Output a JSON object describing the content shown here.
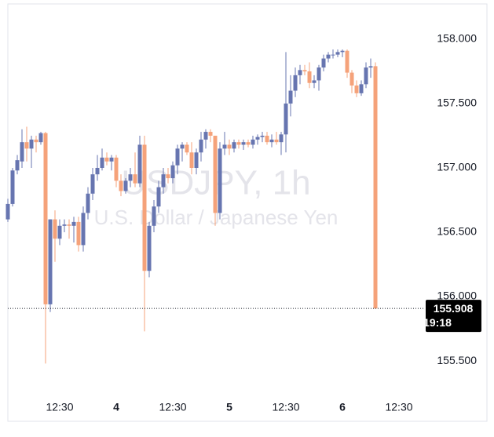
{
  "chart_data": {
    "type": "candlestick",
    "title": "USDJPY, 1h",
    "subtitle": "U.S. Dollar / Japanese Yen",
    "up_color": "#6775b0",
    "down_color": "#f5a27a",
    "open": [
      156.6,
      156.72,
      156.98,
      157.05,
      157.2,
      157.15,
      157.22,
      157.2,
      157.27,
      155.94,
      156.6,
      156.45,
      156.55,
      156.56,
      156.55,
      156.58,
      156.4,
      156.65,
      156.8,
      156.95,
      157.0,
      157.08,
      157.05,
      157.08,
      156.9,
      156.82,
      156.9,
      156.95,
      156.88,
      157.18,
      156.2,
      156.55,
      156.7,
      156.85,
      156.95,
      156.92,
      157.02,
      157.15,
      157.18,
      157.12,
      157.0,
      157.12,
      157.22,
      157.28,
      157.25,
      156.65,
      157.15,
      157.18,
      157.15,
      157.2,
      157.18,
      157.2,
      157.18,
      157.22,
      157.24,
      157.25,
      157.2,
      157.22,
      157.2,
      157.26,
      157.5,
      157.6,
      157.72,
      157.76,
      157.75,
      157.66,
      157.68,
      157.78,
      157.85,
      157.88,
      157.88,
      157.9,
      157.91,
      157.74,
      157.64,
      157.58,
      157.65,
      157.78,
      157.79
    ],
    "high": [
      156.76,
      157.0,
      157.1,
      157.3,
      157.32,
      157.25,
      157.25,
      157.28,
      157.28,
      156.6,
      156.67,
      156.6,
      156.6,
      156.6,
      156.62,
      156.62,
      156.7,
      156.85,
      157.0,
      157.1,
      157.15,
      157.12,
      157.1,
      157.1,
      156.95,
      156.92,
      157.0,
      157.12,
      157.25,
      157.25,
      156.58,
      156.75,
      156.9,
      157.0,
      157.0,
      157.05,
      157.18,
      157.2,
      157.2,
      157.2,
      157.15,
      157.28,
      157.3,
      157.3,
      157.25,
      157.2,
      157.28,
      157.22,
      157.22,
      157.22,
      157.22,
      157.22,
      157.25,
      157.26,
      157.28,
      157.28,
      157.26,
      157.28,
      157.28,
      157.9,
      157.72,
      157.78,
      157.8,
      157.8,
      157.82,
      157.72,
      157.8,
      157.88,
      157.9,
      157.92,
      157.92,
      157.92,
      157.92,
      157.76,
      157.68,
      157.68,
      157.82,
      157.85,
      157.82
    ],
    "low": [
      156.58,
      156.7,
      156.95,
      157.0,
      157.05,
      157.0,
      157.12,
      157.18,
      155.48,
      155.88,
      156.27,
      156.4,
      156.5,
      156.45,
      156.42,
      156.35,
      156.35,
      156.6,
      156.75,
      156.9,
      156.98,
      157.02,
      156.98,
      156.85,
      156.78,
      156.8,
      156.85,
      156.85,
      156.85,
      155.73,
      156.15,
      156.5,
      156.65,
      156.8,
      156.88,
      156.88,
      156.95,
      157.05,
      157.1,
      156.95,
      156.95,
      157.05,
      157.15,
      157.2,
      156.55,
      156.6,
      157.1,
      157.1,
      157.12,
      157.15,
      157.14,
      157.16,
      157.15,
      157.18,
      157.2,
      157.18,
      157.16,
      157.18,
      157.1,
      157.12,
      157.4,
      157.55,
      157.65,
      157.72,
      157.62,
      157.62,
      157.6,
      157.75,
      157.82,
      157.85,
      157.86,
      157.86,
      157.7,
      157.58,
      157.55,
      157.56,
      157.62,
      157.7,
      155.908
    ],
    "close": [
      156.72,
      156.98,
      157.06,
      157.2,
      157.15,
      157.22,
      157.2,
      157.27,
      155.94,
      156.6,
      156.45,
      156.55,
      156.56,
      156.55,
      156.58,
      156.4,
      156.65,
      156.8,
      156.95,
      157.0,
      157.08,
      157.05,
      157.08,
      156.9,
      156.82,
      156.9,
      156.95,
      156.88,
      157.18,
      156.2,
      156.55,
      156.7,
      156.85,
      156.95,
      156.92,
      157.02,
      157.15,
      157.18,
      157.12,
      157.0,
      157.12,
      157.22,
      157.28,
      157.25,
      156.65,
      157.15,
      157.18,
      157.15,
      157.2,
      157.18,
      157.2,
      157.18,
      157.22,
      157.24,
      157.25,
      157.2,
      157.22,
      157.2,
      157.26,
      157.5,
      157.6,
      157.72,
      157.76,
      157.75,
      157.66,
      157.68,
      157.78,
      157.85,
      157.88,
      157.88,
      157.9,
      157.91,
      157.74,
      157.64,
      157.58,
      157.65,
      157.78,
      157.79,
      155.908
    ],
    "last_price": 155.908,
    "countdown": "19:18",
    "ylim": [
      155.226,
      158.274
    ],
    "yticks": [
      {
        "value": 155.5,
        "label": "155.500"
      },
      {
        "value": 156,
        "label": "156.000"
      },
      {
        "value": 156.5,
        "label": "156.500"
      },
      {
        "value": 157,
        "label": "157.000"
      },
      {
        "value": 157.5,
        "label": "157.500"
      },
      {
        "value": 158,
        "label": "158.000"
      }
    ],
    "xlim": [
      0,
      88.33
    ],
    "xticks": [
      {
        "value": 11,
        "label": "12:30"
      },
      {
        "value": 23,
        "label": "4"
      },
      {
        "value": 35,
        "label": "12:30"
      },
      {
        "value": 47,
        "label": "5"
      },
      {
        "value": 59,
        "label": "12:30"
      },
      {
        "value": 71,
        "label": "6"
      },
      {
        "value": 83,
        "label": "12:30"
      }
    ]
  }
}
